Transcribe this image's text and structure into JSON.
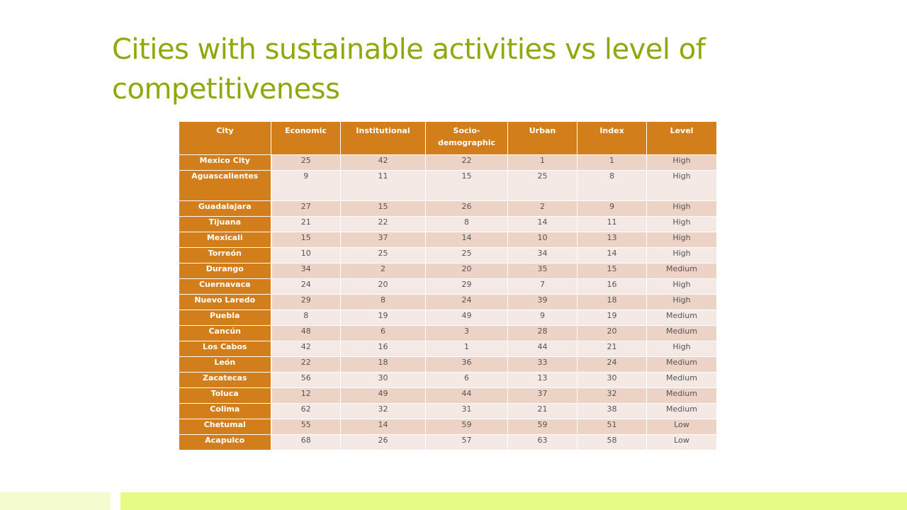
{
  "slide": {
    "title": "Cities with sustainable activities vs level of competitiveness"
  },
  "table": {
    "headers": [
      "City",
      "Economic",
      "Institutional",
      "Socio-\ndemographic",
      "Urban",
      "Index",
      "Level"
    ],
    "rows": [
      {
        "city": "Mexico City",
        "economic": "25",
        "institutional": "42",
        "socio": "22",
        "urban": "1",
        "index": "1",
        "level": "High"
      },
      {
        "city": "Aguascalientes",
        "economic": "9",
        "institutional": "11",
        "socio": "15",
        "urban": "25",
        "index": "8",
        "level": "High"
      },
      {
        "city": "Guadalajara",
        "economic": "27",
        "institutional": "15",
        "socio": "26",
        "urban": "2",
        "index": "9",
        "level": "High"
      },
      {
        "city": "Tijuana",
        "economic": "21",
        "institutional": "22",
        "socio": "8",
        "urban": "14",
        "index": "11",
        "level": "High"
      },
      {
        "city": "Mexicali",
        "economic": "15",
        "institutional": "37",
        "socio": "14",
        "urban": "10",
        "index": "13",
        "level": "High"
      },
      {
        "city": "Torreón",
        "economic": "10",
        "institutional": "25",
        "socio": "25",
        "urban": "34",
        "index": "14",
        "level": "High"
      },
      {
        "city": "Durango",
        "economic": "34",
        "institutional": "2",
        "socio": "20",
        "urban": "35",
        "index": "15",
        "level": "Medium"
      },
      {
        "city": "Cuernavaca",
        "economic": "24",
        "institutional": "20",
        "socio": "29",
        "urban": "7",
        "index": "16",
        "level": "High"
      },
      {
        "city": "Nuevo Laredo",
        "economic": "29",
        "institutional": "8",
        "socio": "24",
        "urban": "39",
        "index": "18",
        "level": "High"
      },
      {
        "city": "Puebla",
        "economic": "8",
        "institutional": "19",
        "socio": "49",
        "urban": "9",
        "index": "19",
        "level": "Medium"
      },
      {
        "city": "Cancún",
        "economic": "48",
        "institutional": "6",
        "socio": "3",
        "urban": "28",
        "index": "20",
        "level": "Medium"
      },
      {
        "city": "Los Cabos",
        "economic": "42",
        "institutional": "16",
        "socio": "1",
        "urban": "44",
        "index": "21",
        "level": "High"
      },
      {
        "city": "León",
        "economic": "22",
        "institutional": "18",
        "socio": "36",
        "urban": "33",
        "index": "24",
        "level": "Medium"
      },
      {
        "city": "Zacatecas",
        "economic": "56",
        "institutional": "30",
        "socio": "6",
        "urban": "13",
        "index": "30",
        "level": "Medium"
      },
      {
        "city": "Toluca",
        "economic": "12",
        "institutional": "49",
        "socio": "44",
        "urban": "37",
        "index": "32",
        "level": "Medium"
      },
      {
        "city": "Colima",
        "economic": "62",
        "institutional": "32",
        "socio": "31",
        "urban": "21",
        "index": "38",
        "level": "Medium"
      },
      {
        "city": "Chetumal",
        "economic": "55",
        "institutional": "14",
        "socio": "59",
        "urban": "59",
        "index": "51",
        "level": "Low"
      },
      {
        "city": "Acapulco",
        "economic": "68",
        "institutional": "26",
        "socio": "57",
        "urban": "63",
        "index": "58",
        "level": "Low"
      }
    ]
  },
  "colors": {
    "title": "#8fa80a",
    "header_bg": "#d27f1b",
    "row_odd": "#ecd3c6",
    "row_even": "#f4e9e4",
    "footer_band": "#e6fb84",
    "footer_band_light": "#f4fbcf"
  }
}
